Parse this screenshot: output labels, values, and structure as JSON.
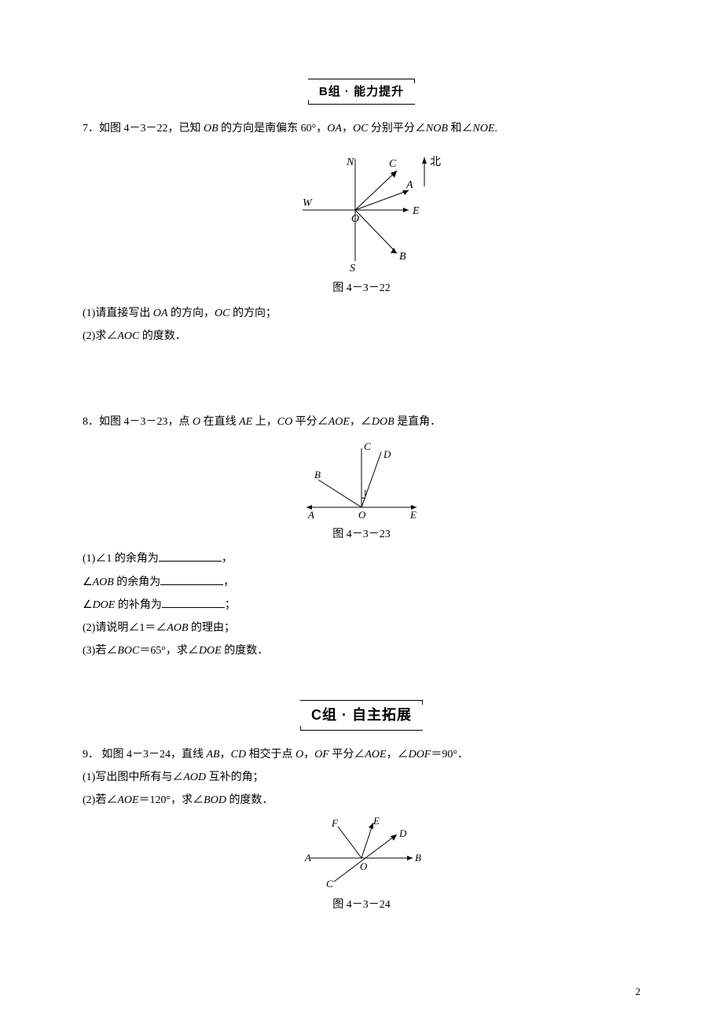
{
  "sectionB": {
    "label": "B组 · 能力提升"
  },
  "sectionC": {
    "label": "C组 · 自主拓展"
  },
  "q7": {
    "stem": "7．如图 4－3－22，已知 <span class=\"ita\">OB</span> 的方向是南偏东 60°，<span class=\"ita\">OA</span>，<span class=\"ita\">OC</span> 分别平分∠<span class=\"ita\">NOB</span> 和∠<span class=\"ita\">NOE</span>.",
    "caption": "图 4－3－22",
    "sub1": "(1)请直接写出 <span class=\"ita\">OA</span> 的方向，<span class=\"ita\">OC</span> 的方向；",
    "sub2": "(2)求∠<span class=\"ita\">AOC</span> 的度数．",
    "labels": {
      "N": "N",
      "C": "C",
      "A": "A",
      "W": "W",
      "O": "O",
      "E": "E",
      "S": "S",
      "B": "B",
      "North": "北"
    }
  },
  "q8": {
    "stem": "8．如图 4－3－23，点 <span class=\"ita\">O</span> 在直线 <span class=\"ita\">AE</span> 上，<span class=\"ita\">CO</span> 平分∠<span class=\"ita\">AOE</span>，∠<span class=\"ita\">DOB</span> 是直角．",
    "caption": "图 4－3－23",
    "line1a": "(1)∠1 的余角为",
    "line1b": "，",
    "line2a": "∠<span class=\"ita\">AOB</span> 的余角为",
    "line2b": "，",
    "line3a": "∠<span class=\"ita\">DOE</span> 的补角为",
    "line3b": "；",
    "sub2": "(2)请说明∠1＝∠<span class=\"ita\">AOB</span> 的理由；",
    "sub3": "(3)若∠<span class=\"ita\">BOC</span>＝65°，求∠<span class=\"ita\">DOE</span> 的度数．",
    "labels": {
      "A": "A",
      "B": "B",
      "C": "C",
      "D": "D",
      "E": "E",
      "O": "O",
      "one": "1"
    }
  },
  "q9": {
    "stem": "9．  如图 4－3－24，直线 <span class=\"ita\">AB</span>，<span class=\"ita\">CD</span> 相交于点 <span class=\"ita\">O</span>，<span class=\"ita\">OF</span> 平分∠<span class=\"ita\">AOE</span>，∠<span class=\"ita\">DOF</span>＝90°．",
    "sub1": "(1)写出图中所有与∠<span class=\"ita\">AOD</span> 互补的角；",
    "sub2": "(2)若∠<span class=\"ita\">AOE</span>＝120°，求∠<span class=\"ita\">BOD</span> 的度数．",
    "caption": "图 4－3－24",
    "labels": {
      "A": "A",
      "B": "B",
      "C": "C",
      "D": "D",
      "E": "E",
      "F": "F",
      "O": "O"
    }
  },
  "pageNumber": "2"
}
